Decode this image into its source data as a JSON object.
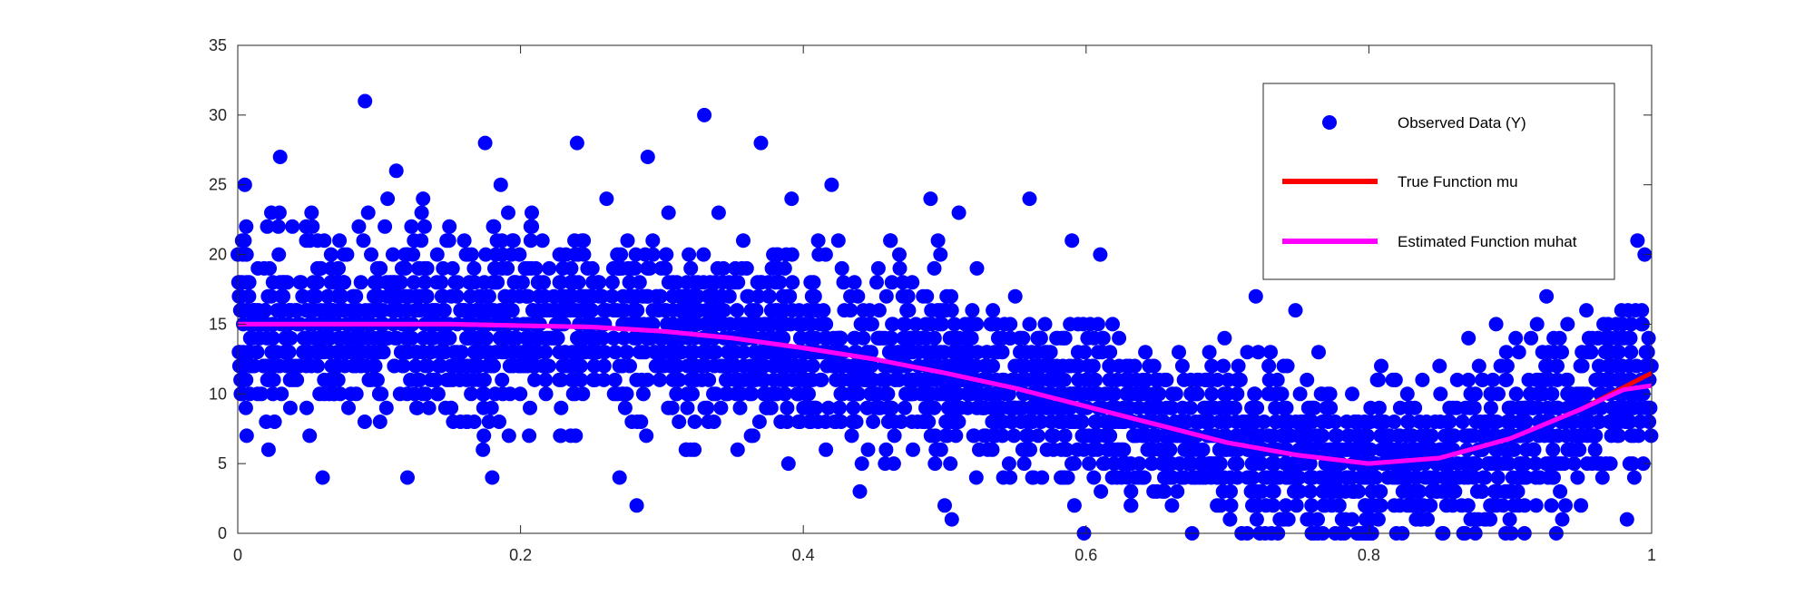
{
  "chart_data": {
    "type": "scatter",
    "title": "",
    "xlabel": "",
    "ylabel": "",
    "xlim": [
      0,
      1
    ],
    "ylim": [
      0,
      35
    ],
    "x_ticks": [
      0,
      0.2,
      0.4,
      0.6,
      0.8,
      1
    ],
    "x_tick_labels": [
      "0",
      "0.2",
      "0.4",
      "0.6",
      "0.8",
      "1"
    ],
    "y_ticks": [
      0,
      5,
      10,
      15,
      20,
      25,
      30,
      35
    ],
    "y_tick_labels": [
      "0",
      "5",
      "10",
      "15",
      "20",
      "25",
      "30",
      "35"
    ],
    "grid": false,
    "legend_position": "top-right",
    "series": [
      {
        "name": "Observed Data (Y)",
        "kind": "scatter",
        "color": "#0000ff",
        "note_points": [
          {
            "x": 0.09,
            "y": 31
          },
          {
            "x": 0.33,
            "y": 30
          },
          {
            "x": 0.24,
            "y": 28
          },
          {
            "x": 0.37,
            "y": 28
          },
          {
            "x": 0.175,
            "y": 28
          },
          {
            "x": 0.03,
            "y": 27
          },
          {
            "x": 0.29,
            "y": 27
          },
          {
            "x": 0.005,
            "y": 25
          },
          {
            "x": 0.42,
            "y": 25
          },
          {
            "x": 0.49,
            "y": 24
          },
          {
            "x": 0.56,
            "y": 24
          },
          {
            "x": 0.51,
            "y": 23
          },
          {
            "x": 0.59,
            "y": 21
          },
          {
            "x": 0.61,
            "y": 20
          },
          {
            "x": 0.99,
            "y": 21
          },
          {
            "x": 0.5,
            "y": 2
          },
          {
            "x": 0.505,
            "y": 1
          },
          {
            "x": 0.06,
            "y": 4
          },
          {
            "x": 0.18,
            "y": 4
          },
          {
            "x": 0.71,
            "y": 0
          },
          {
            "x": 0.8,
            "y": 0
          },
          {
            "x": 0.91,
            "y": 0
          },
          {
            "x": 0.72,
            "y": 17
          },
          {
            "x": 0.89,
            "y": 15
          },
          {
            "x": 0.44,
            "y": 3
          },
          {
            "x": 0.27,
            "y": 4
          },
          {
            "x": 0.12,
            "y": 4
          },
          {
            "x": 0.95,
            "y": 2
          }
        ]
      },
      {
        "name": "True Function mu",
        "kind": "line",
        "color": "#ff0000",
        "x": [
          0,
          0.05,
          0.1,
          0.15,
          0.2,
          0.25,
          0.3,
          0.35,
          0.4,
          0.45,
          0.5,
          0.55,
          0.6,
          0.65,
          0.7,
          0.75,
          0.8,
          0.85,
          0.9,
          0.95,
          1.0
        ],
        "y": [
          15.0,
          15.0,
          15.0,
          15.0,
          14.9,
          14.8,
          14.5,
          14.0,
          13.3,
          12.5,
          11.5,
          10.4,
          9.1,
          7.8,
          6.5,
          5.6,
          5.0,
          5.4,
          6.8,
          8.9,
          11.5
        ]
      },
      {
        "name": "Estimated Function muhat",
        "kind": "line",
        "color": "#ff00ff",
        "x": [
          0,
          0.05,
          0.1,
          0.15,
          0.2,
          0.25,
          0.3,
          0.35,
          0.4,
          0.45,
          0.5,
          0.55,
          0.6,
          0.65,
          0.7,
          0.75,
          0.8,
          0.85,
          0.9,
          0.95,
          0.98,
          1.0
        ],
        "y": [
          15.0,
          15.0,
          15.0,
          15.0,
          14.9,
          14.8,
          14.5,
          14.0,
          13.3,
          12.5,
          11.5,
          10.4,
          9.1,
          7.8,
          6.5,
          5.6,
          5.0,
          5.4,
          6.8,
          8.9,
          10.3,
          10.6
        ]
      }
    ]
  }
}
